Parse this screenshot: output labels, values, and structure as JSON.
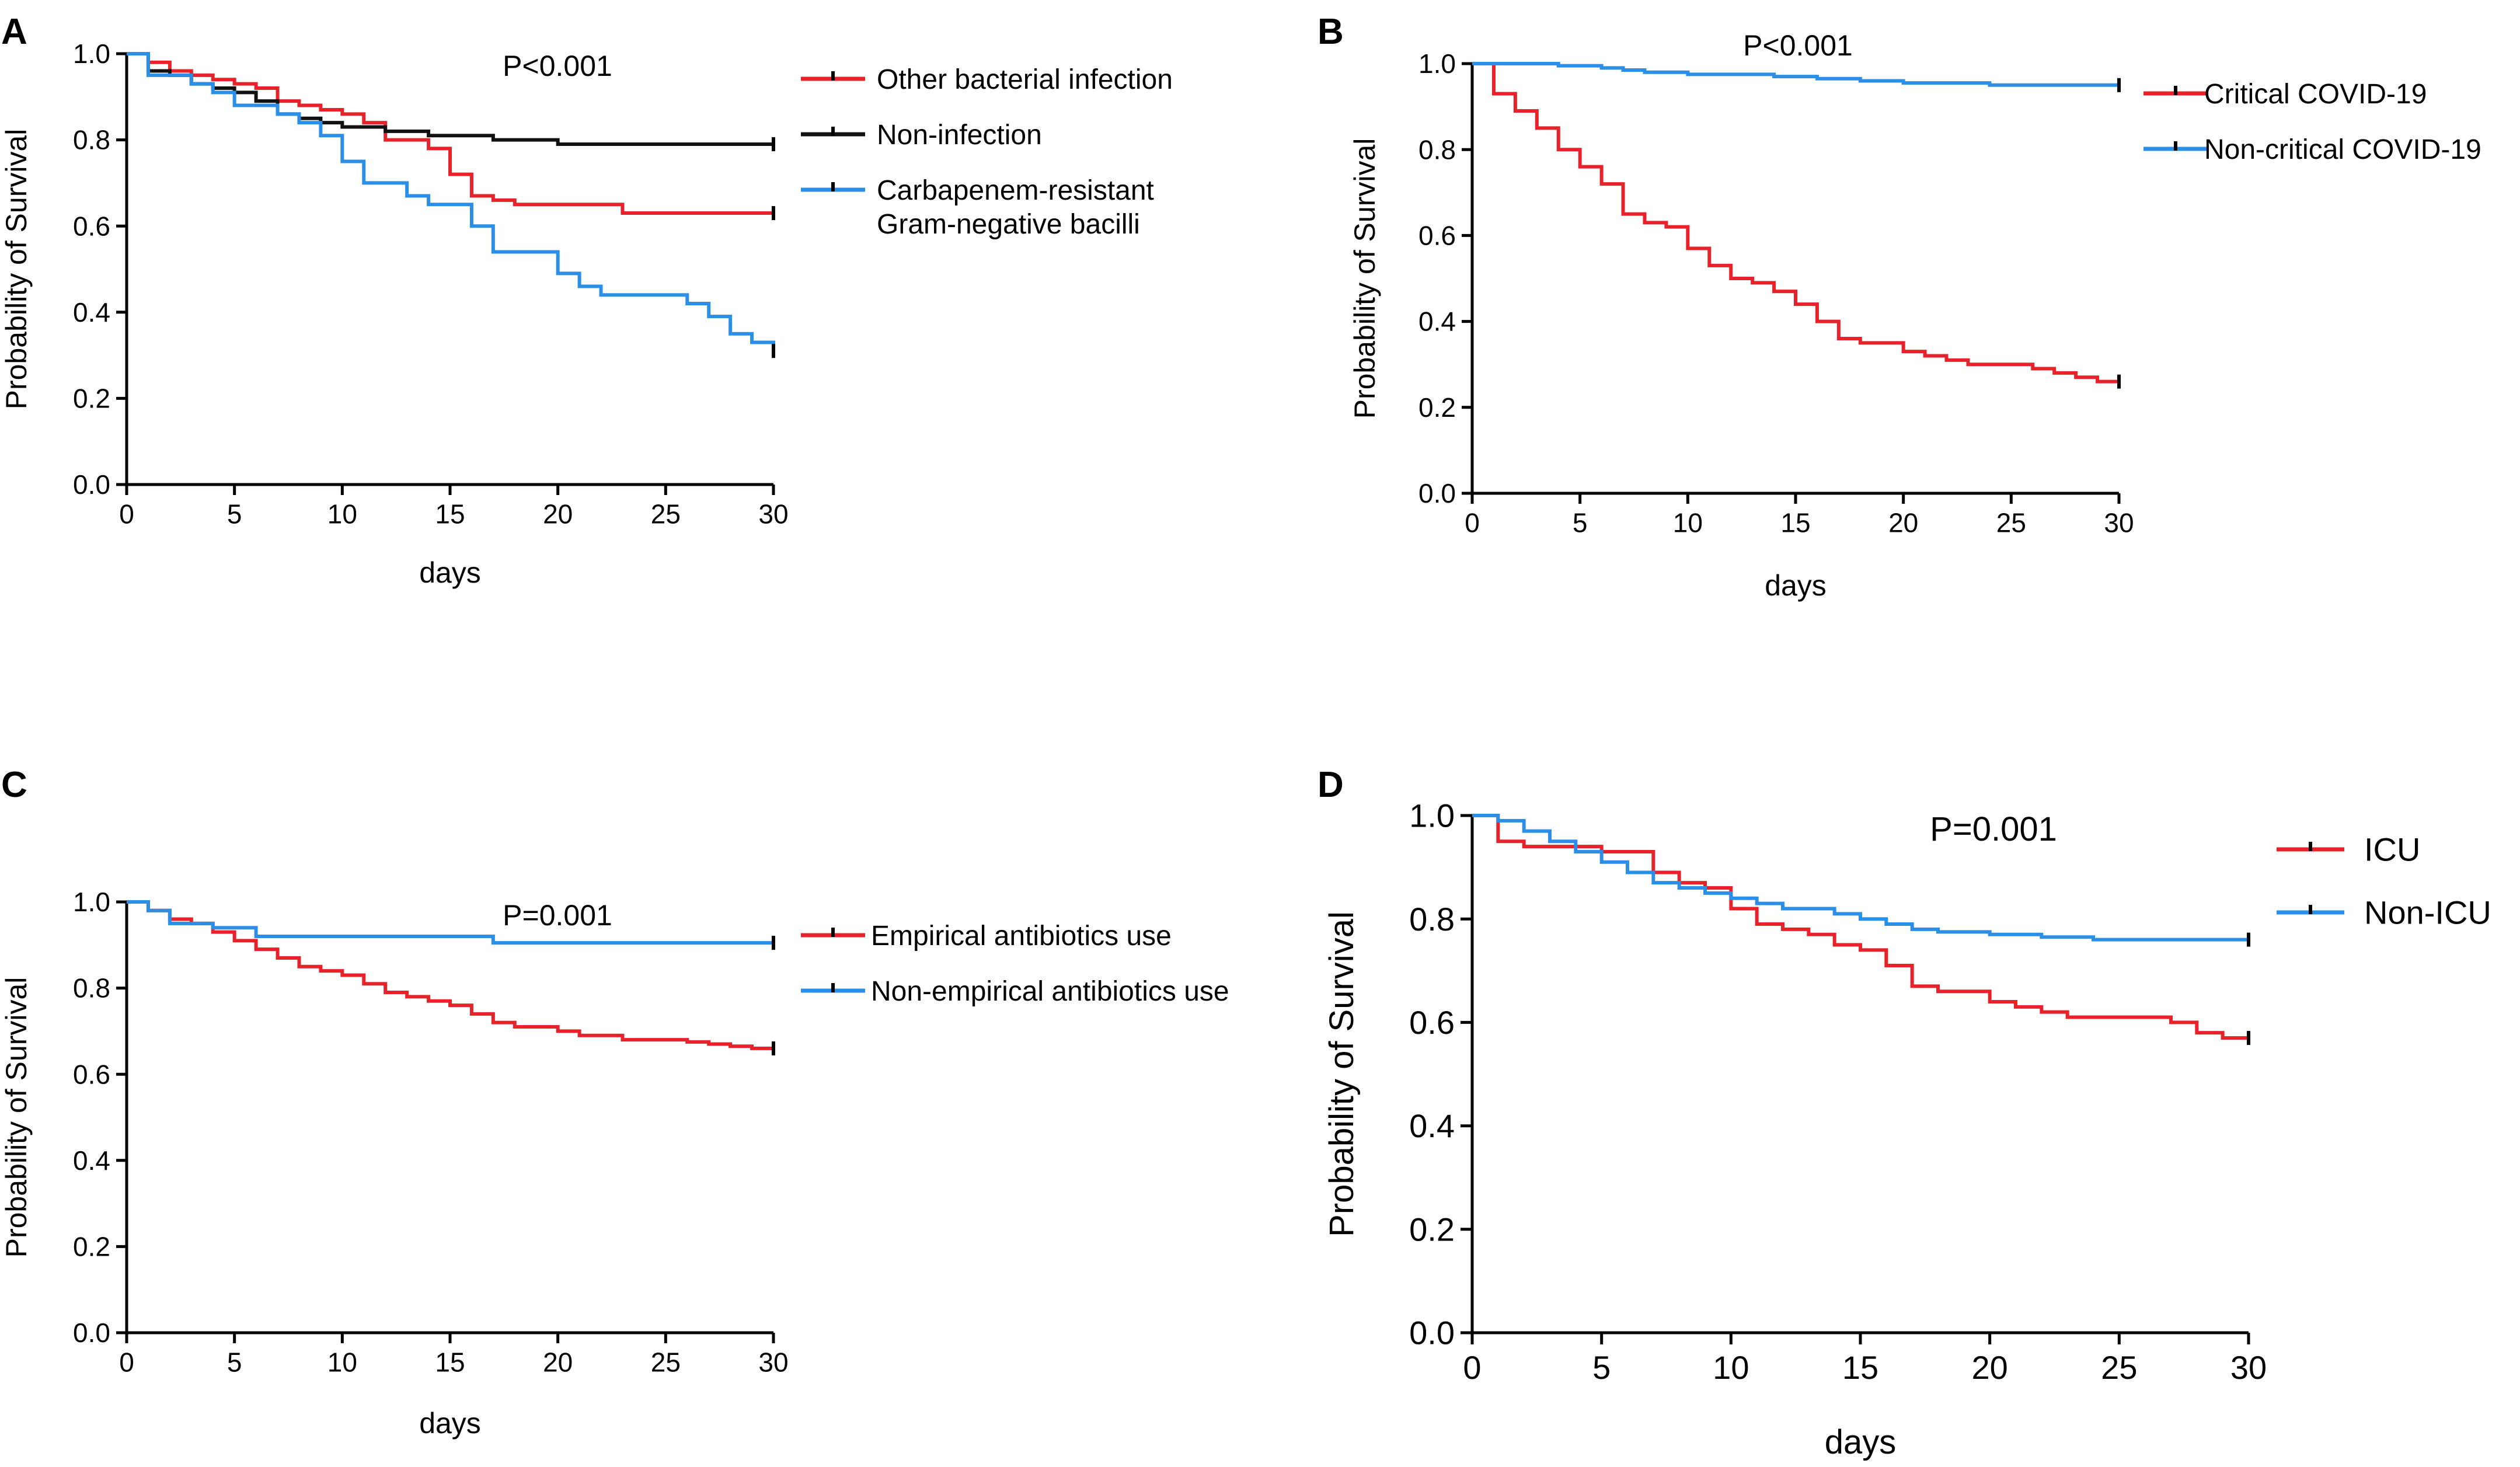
{
  "colors": {
    "red": "#e8222a",
    "blue": "#2b8fe8",
    "black": "#111111",
    "axis": "#000000"
  },
  "chart_data": [
    {
      "panel": "A",
      "type": "line",
      "subtype": "kaplan-meier",
      "title": "",
      "xlabel": "days",
      "ylabel": "Probability of Survival",
      "annotation": "P<0.001",
      "xlim": [
        0,
        30
      ],
      "ylim": [
        0,
        1.0
      ],
      "x_ticks": [
        "0",
        "5",
        "10",
        "15",
        "20",
        "25",
        "30"
      ],
      "y_ticks": [
        "0.0",
        "0.2",
        "0.4",
        "0.6",
        "0.8",
        "1.0"
      ],
      "legend_position": "top-right",
      "series": [
        {
          "name": "Other bacterial infection",
          "color": "red",
          "steps": [
            [
              0,
              1.0
            ],
            [
              1,
              0.98
            ],
            [
              2,
              0.96
            ],
            [
              3,
              0.95
            ],
            [
              4,
              0.94
            ],
            [
              5,
              0.93
            ],
            [
              6,
              0.92
            ],
            [
              7,
              0.89
            ],
            [
              8,
              0.88
            ],
            [
              9,
              0.87
            ],
            [
              10,
              0.86
            ],
            [
              11,
              0.84
            ],
            [
              12,
              0.8
            ],
            [
              14,
              0.78
            ],
            [
              15,
              0.72
            ],
            [
              16,
              0.67
            ],
            [
              17,
              0.66
            ],
            [
              18,
              0.65
            ],
            [
              23,
              0.63
            ],
            [
              30,
              0.63
            ]
          ]
        },
        {
          "name": "Non-infection",
          "color": "black",
          "steps": [
            [
              0,
              1.0
            ],
            [
              1,
              0.96
            ],
            [
              2,
              0.95
            ],
            [
              3,
              0.93
            ],
            [
              4,
              0.92
            ],
            [
              5,
              0.91
            ],
            [
              6,
              0.89
            ],
            [
              7,
              0.86
            ],
            [
              8,
              0.85
            ],
            [
              9,
              0.84
            ],
            [
              10,
              0.83
            ],
            [
              11,
              0.83
            ],
            [
              12,
              0.82
            ],
            [
              14,
              0.81
            ],
            [
              16,
              0.81
            ],
            [
              17,
              0.8
            ],
            [
              20,
              0.79
            ],
            [
              23,
              0.79
            ],
            [
              30,
              0.79
            ]
          ]
        },
        {
          "name": [
            "Carbapenem-resistant",
            "Gram-negative bacilli"
          ],
          "color": "blue",
          "steps": [
            [
              0,
              1.0
            ],
            [
              1,
              0.95
            ],
            [
              3,
              0.93
            ],
            [
              4,
              0.91
            ],
            [
              5,
              0.88
            ],
            [
              7,
              0.86
            ],
            [
              8,
              0.84
            ],
            [
              9,
              0.81
            ],
            [
              10,
              0.75
            ],
            [
              11,
              0.7
            ],
            [
              13,
              0.67
            ],
            [
              14,
              0.65
            ],
            [
              16,
              0.6
            ],
            [
              17,
              0.54
            ],
            [
              20,
              0.49
            ],
            [
              21,
              0.46
            ],
            [
              22,
              0.44
            ],
            [
              26,
              0.42
            ],
            [
              27,
              0.39
            ],
            [
              28,
              0.35
            ],
            [
              29,
              0.33
            ],
            [
              30,
              0.31
            ]
          ]
        }
      ]
    },
    {
      "panel": "B",
      "type": "line",
      "subtype": "kaplan-meier",
      "title": "",
      "xlabel": "days",
      "ylabel": "Probability of Survival",
      "annotation": "P<0.001",
      "xlim": [
        0,
        30
      ],
      "ylim": [
        0,
        1.0
      ],
      "x_ticks": [
        "0",
        "5",
        "10",
        "15",
        "20",
        "25",
        "30"
      ],
      "y_ticks": [
        "0.0",
        "0.2",
        "0.4",
        "0.6",
        "0.8",
        "1.0"
      ],
      "legend_position": "top-right",
      "series": [
        {
          "name": "Critical COVID-19",
          "color": "red",
          "steps": [
            [
              0,
              1.0
            ],
            [
              1,
              0.93
            ],
            [
              2,
              0.89
            ],
            [
              3,
              0.85
            ],
            [
              4,
              0.8
            ],
            [
              5,
              0.76
            ],
            [
              6,
              0.72
            ],
            [
              7,
              0.65
            ],
            [
              8,
              0.63
            ],
            [
              9,
              0.62
            ],
            [
              10,
              0.57
            ],
            [
              11,
              0.53
            ],
            [
              12,
              0.5
            ],
            [
              13,
              0.49
            ],
            [
              14,
              0.47
            ],
            [
              15,
              0.44
            ],
            [
              16,
              0.4
            ],
            [
              17,
              0.36
            ],
            [
              18,
              0.35
            ],
            [
              20,
              0.33
            ],
            [
              21,
              0.32
            ],
            [
              22,
              0.31
            ],
            [
              23,
              0.3
            ],
            [
              26,
              0.29
            ],
            [
              27,
              0.28
            ],
            [
              28,
              0.27
            ],
            [
              29,
              0.26
            ],
            [
              30,
              0.26
            ]
          ]
        },
        {
          "name": "Non-critical COVID-19",
          "color": "blue",
          "steps": [
            [
              0,
              1.0
            ],
            [
              4,
              0.995
            ],
            [
              6,
              0.99
            ],
            [
              7,
              0.985
            ],
            [
              8,
              0.98
            ],
            [
              10,
              0.975
            ],
            [
              14,
              0.97
            ],
            [
              16,
              0.965
            ],
            [
              18,
              0.96
            ],
            [
              20,
              0.955
            ],
            [
              24,
              0.95
            ],
            [
              30,
              0.95
            ]
          ]
        }
      ]
    },
    {
      "panel": "C",
      "type": "line",
      "subtype": "kaplan-meier",
      "title": "",
      "xlabel": "days",
      "ylabel": "Probability of Survival",
      "annotation": "P=0.001",
      "xlim": [
        0,
        30
      ],
      "ylim": [
        0,
        1.0
      ],
      "x_ticks": [
        "0",
        "5",
        "10",
        "15",
        "20",
        "25",
        "30"
      ],
      "y_ticks": [
        "0.0",
        "0.2",
        "0.4",
        "0.6",
        "0.8",
        "1.0"
      ],
      "legend_position": "top-right",
      "series": [
        {
          "name": "Empirical antibiotics use",
          "color": "red",
          "steps": [
            [
              0,
              1.0
            ],
            [
              1,
              0.98
            ],
            [
              2,
              0.96
            ],
            [
              3,
              0.95
            ],
            [
              4,
              0.93
            ],
            [
              5,
              0.91
            ],
            [
              6,
              0.89
            ],
            [
              7,
              0.87
            ],
            [
              8,
              0.85
            ],
            [
              9,
              0.84
            ],
            [
              10,
              0.83
            ],
            [
              11,
              0.81
            ],
            [
              12,
              0.79
            ],
            [
              13,
              0.78
            ],
            [
              14,
              0.77
            ],
            [
              15,
              0.76
            ],
            [
              16,
              0.74
            ],
            [
              17,
              0.72
            ],
            [
              18,
              0.71
            ],
            [
              20,
              0.7
            ],
            [
              21,
              0.69
            ],
            [
              23,
              0.68
            ],
            [
              26,
              0.675
            ],
            [
              27,
              0.67
            ],
            [
              28,
              0.665
            ],
            [
              29,
              0.66
            ],
            [
              30,
              0.66
            ]
          ]
        },
        {
          "name": "Non-empirical antibiotics use",
          "color": "blue",
          "steps": [
            [
              0,
              1.0
            ],
            [
              1,
              0.98
            ],
            [
              2,
              0.95
            ],
            [
              4,
              0.94
            ],
            [
              6,
              0.92
            ],
            [
              17,
              0.905
            ],
            [
              30,
              0.905
            ]
          ]
        }
      ]
    },
    {
      "panel": "D",
      "type": "line",
      "subtype": "kaplan-meier",
      "title": "",
      "xlabel": "days",
      "ylabel": "Probability of Survival",
      "annotation": "P=0.001",
      "xlim": [
        0,
        30
      ],
      "ylim": [
        0,
        1.0
      ],
      "x_ticks": [
        "0",
        "5",
        "10",
        "15",
        "20",
        "25",
        "30"
      ],
      "y_ticks": [
        "0.0",
        "0.2",
        "0.4",
        "0.6",
        "0.8",
        "1.0"
      ],
      "legend_position": "top-right",
      "series": [
        {
          "name": "ICU",
          "color": "red",
          "steps": [
            [
              0,
              1.0
            ],
            [
              1,
              0.95
            ],
            [
              2,
              0.94
            ],
            [
              5,
              0.93
            ],
            [
              7,
              0.89
            ],
            [
              8,
              0.87
            ],
            [
              9,
              0.86
            ],
            [
              10,
              0.82
            ],
            [
              11,
              0.79
            ],
            [
              12,
              0.78
            ],
            [
              13,
              0.77
            ],
            [
              14,
              0.75
            ],
            [
              15,
              0.74
            ],
            [
              16,
              0.71
            ],
            [
              17,
              0.67
            ],
            [
              18,
              0.66
            ],
            [
              20,
              0.64
            ],
            [
              21,
              0.63
            ],
            [
              22,
              0.62
            ],
            [
              23,
              0.61
            ],
            [
              27,
              0.6
            ],
            [
              28,
              0.58
            ],
            [
              29,
              0.57
            ],
            [
              30,
              0.57
            ]
          ]
        },
        {
          "name": "Non-ICU",
          "color": "blue",
          "steps": [
            [
              0,
              1.0
            ],
            [
              1,
              0.99
            ],
            [
              2,
              0.97
            ],
            [
              3,
              0.95
            ],
            [
              4,
              0.93
            ],
            [
              5,
              0.91
            ],
            [
              6,
              0.89
            ],
            [
              7,
              0.87
            ],
            [
              8,
              0.86
            ],
            [
              9,
              0.85
            ],
            [
              10,
              0.84
            ],
            [
              11,
              0.83
            ],
            [
              12,
              0.82
            ],
            [
              14,
              0.81
            ],
            [
              15,
              0.8
            ],
            [
              16,
              0.79
            ],
            [
              17,
              0.78
            ],
            [
              18,
              0.775
            ],
            [
              20,
              0.77
            ],
            [
              22,
              0.765
            ],
            [
              24,
              0.76
            ],
            [
              30,
              0.76
            ]
          ]
        }
      ]
    }
  ]
}
